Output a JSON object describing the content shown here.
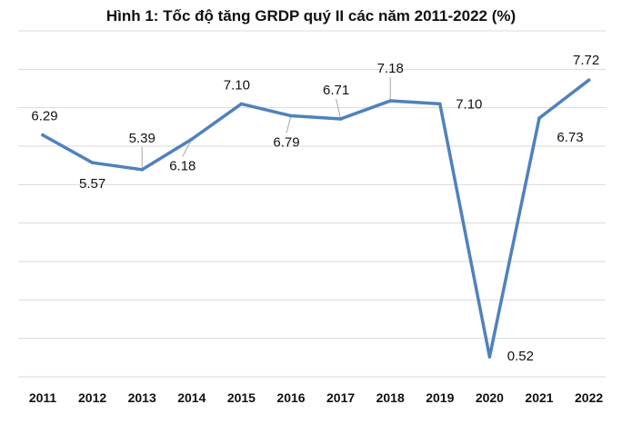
{
  "chart_data": {
    "type": "line",
    "title": "Hình 1: Tốc độ tăng GRDP quý II các năm 2011-2022 (%)",
    "xlabel": "",
    "ylabel": "",
    "categories": [
      "2011",
      "2012",
      "2013",
      "2014",
      "2015",
      "2016",
      "2017",
      "2018",
      "2019",
      "2020",
      "2021",
      "2022"
    ],
    "series": [
      {
        "values": [
          6.29,
          5.57,
          5.39,
          6.18,
          7.1,
          6.79,
          6.71,
          7.18,
          7.1,
          0.52,
          6.73,
          7.72
        ]
      }
    ],
    "data_labels": [
      "6.29",
      "5.57",
      "5.39",
      "6.18",
      "7.10",
      "6.79",
      "6.71",
      "7.18",
      "7.10",
      "0.52",
      "6.73",
      "7.72"
    ],
    "ylim": [
      0,
      9
    ],
    "grid": true,
    "legend": "none",
    "colors": {
      "line": "#4f81bd",
      "grid": "#d9d9d9",
      "leader": "#a6a6a6"
    }
  }
}
